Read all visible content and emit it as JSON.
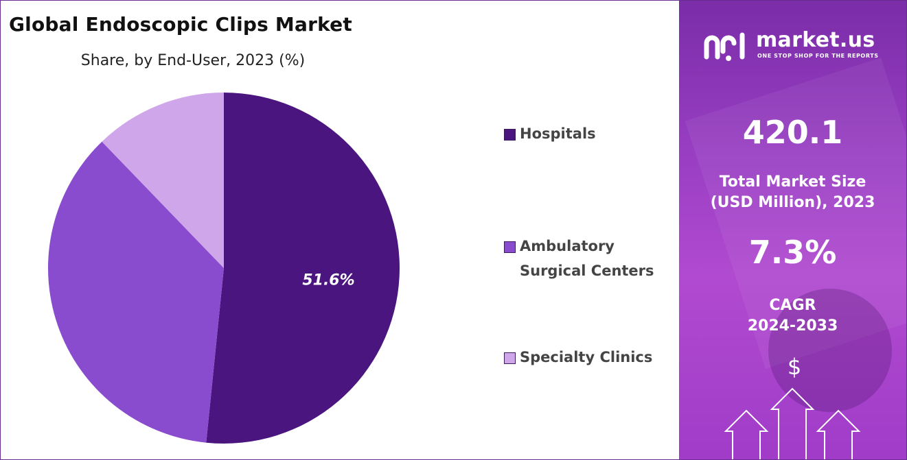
{
  "chart_data": {
    "type": "pie",
    "title": "Global Endoscopic Clips Market",
    "subtitle": "Share, by End-User, 2023 (%)",
    "slices": [
      {
        "label": "Hospitals",
        "value": 51.6,
        "color": "#4b1580",
        "data_label": "51.6%"
      },
      {
        "label": "Ambulatory Surgical Centers",
        "value": 36.2,
        "color": "#8a4ccf",
        "data_label": ""
      },
      {
        "label": "Specialty Clinics",
        "value": 12.2,
        "color": "#d0a6ea",
        "data_label": ""
      }
    ],
    "legend_position": "right"
  },
  "sidebar": {
    "brand": "market.us",
    "tagline": "ONE STOP SHOP FOR THE REPORTS",
    "market_size_value": "420.1",
    "market_size_label_1": "Total Market Size",
    "market_size_label_2": "(USD Million), 2023",
    "cagr_value": "7.3%",
    "cagr_label_1": "CAGR",
    "cagr_label_2": "2024-2033",
    "dollar_symbol": "$"
  },
  "legend": {
    "item_0_line_1": "Hospitals",
    "item_1_line_1": "Ambulatory",
    "item_1_line_2": "Surgical Centers",
    "item_2_line_1": "Specialty Clinics"
  }
}
